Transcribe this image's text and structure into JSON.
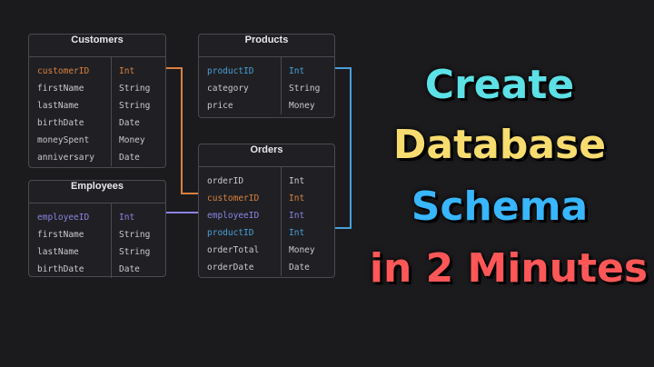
{
  "tables": {
    "customers": {
      "name": "Customers",
      "rows": [
        [
          "customerID",
          "Int"
        ],
        [
          "firstName",
          "String"
        ],
        [
          "lastName",
          "String"
        ],
        [
          "birthDate",
          "Date"
        ],
        [
          "moneySpent",
          "Money"
        ],
        [
          "anniversary",
          "Date"
        ]
      ]
    },
    "products": {
      "name": "Products",
      "rows": [
        [
          "productID",
          "Int"
        ],
        [
          "category",
          "String"
        ],
        [
          "price",
          "Money"
        ]
      ]
    },
    "orders": {
      "name": "Orders",
      "rows": [
        [
          "orderID",
          "Int"
        ],
        [
          "customerID",
          "Int"
        ],
        [
          "employeeID",
          "Int"
        ],
        [
          "productID",
          "Int"
        ],
        [
          "orderTotal",
          "Money"
        ],
        [
          "orderDate",
          "Date"
        ]
      ]
    },
    "employees": {
      "name": "Employees",
      "rows": [
        [
          "employeeID",
          "Int"
        ],
        [
          "firstName",
          "String"
        ],
        [
          "lastName",
          "String"
        ],
        [
          "birthDate",
          "Date"
        ]
      ]
    }
  },
  "headline": {
    "line1": "Create",
    "line2": "Database",
    "line3": "Schema",
    "line4": "in 2 Minutes"
  },
  "colors": {
    "customer_key": "#d9803f",
    "employee_key": "#8b84e0",
    "product_key": "#4a9fd6",
    "line1": "#5ce1e6",
    "line2": "#f7dc6f",
    "line3": "#38b6ff",
    "line4": "#ff5757"
  }
}
